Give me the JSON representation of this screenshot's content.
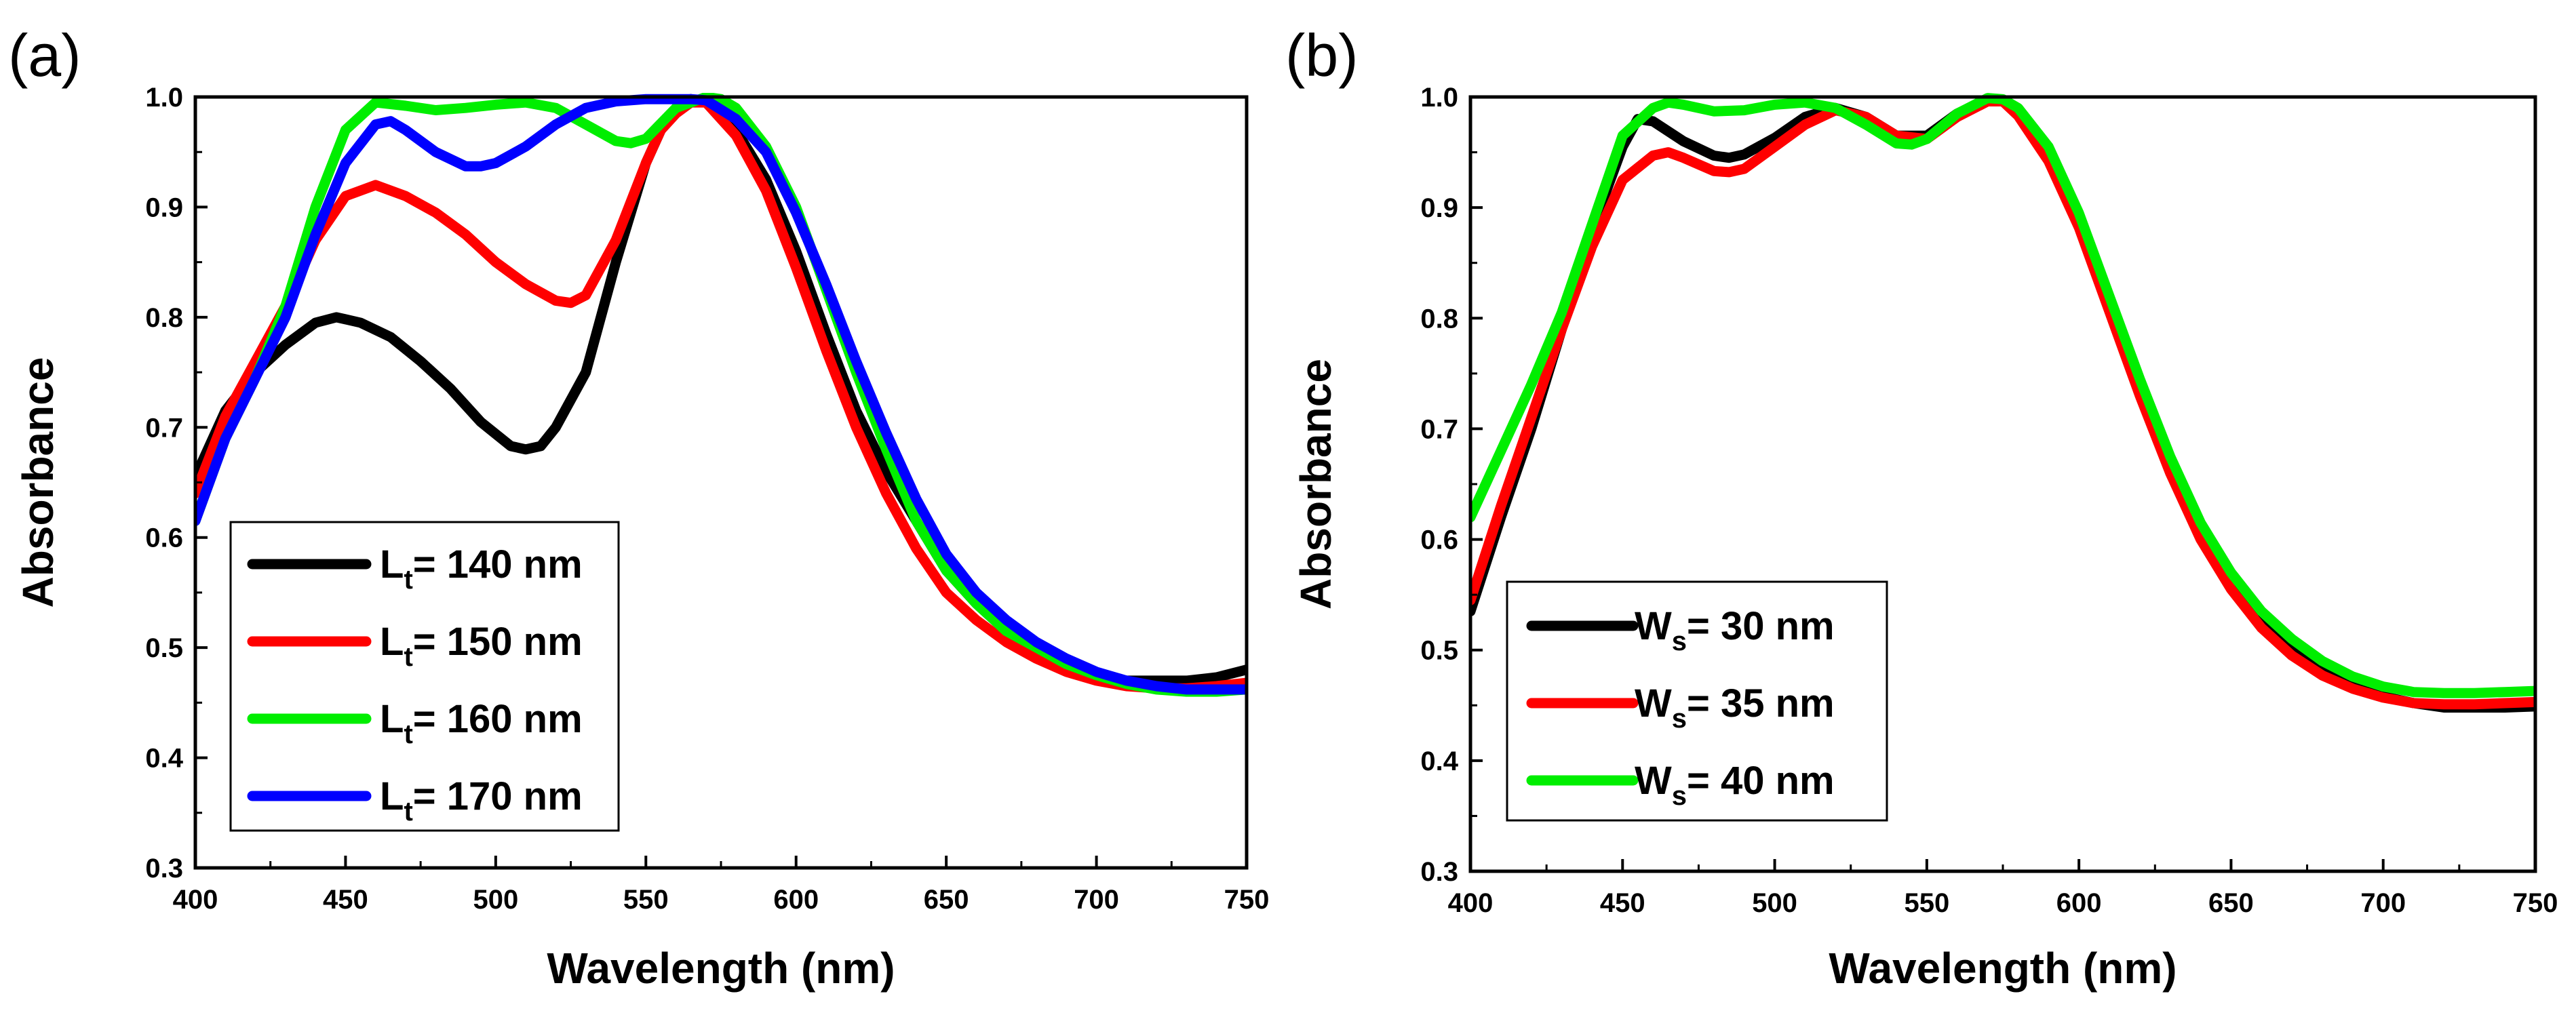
{
  "chart_data": [
    {
      "type": "line",
      "panel_label": "(a)",
      "xlabel": "Wavelength (nm)",
      "ylabel": "Absorbance",
      "xlim": [
        400,
        750
      ],
      "ylim": [
        0.3,
        1.0
      ],
      "xticks": [
        400,
        450,
        500,
        550,
        600,
        650,
        700,
        750
      ],
      "xtick_labels": [
        "400",
        "450",
        "500",
        "550",
        "600",
        "650",
        "700",
        "750"
      ],
      "yticks": [
        0.3,
        0.4,
        0.5,
        0.6,
        0.7,
        0.8,
        0.9,
        1.0
      ],
      "ytick_labels": [
        "0.3",
        "0.4",
        "0.5",
        "0.6",
        "0.7",
        "0.8",
        "0.9",
        "1.0"
      ],
      "legend_position": "lower-left",
      "series": [
        {
          "name": "L",
          "sub": "t",
          "suffix": "= 140 nm",
          "color": "#000000",
          "x": [
            400,
            410,
            420,
            430,
            440,
            447,
            455,
            465,
            475,
            485,
            495,
            505,
            510,
            515,
            520,
            530,
            540,
            550,
            555,
            560,
            565,
            570,
            580,
            590,
            600,
            610,
            620,
            630,
            640,
            650,
            660,
            670,
            680,
            690,
            700,
            710,
            720,
            730,
            740,
            750
          ],
          "y": [
            0.655,
            0.715,
            0.75,
            0.775,
            0.795,
            0.8,
            0.795,
            0.782,
            0.76,
            0.735,
            0.705,
            0.683,
            0.68,
            0.683,
            0.7,
            0.75,
            0.85,
            0.94,
            0.97,
            0.99,
            0.998,
            0.995,
            0.97,
            0.925,
            0.86,
            0.785,
            0.715,
            0.66,
            0.615,
            0.57,
            0.54,
            0.515,
            0.497,
            0.483,
            0.475,
            0.47,
            0.47,
            0.47,
            0.473,
            0.48
          ]
        },
        {
          "name": "L",
          "sub": "t",
          "suffix": "= 150 nm",
          "color": "#ff0000",
          "x": [
            400,
            410,
            420,
            430,
            440,
            450,
            460,
            470,
            480,
            490,
            500,
            510,
            520,
            525,
            530,
            540,
            550,
            555,
            560,
            565,
            570,
            580,
            590,
            600,
            610,
            620,
            630,
            640,
            650,
            660,
            670,
            680,
            690,
            700,
            710,
            720,
            730,
            740,
            750
          ],
          "y": [
            0.64,
            0.71,
            0.76,
            0.81,
            0.87,
            0.91,
            0.92,
            0.91,
            0.895,
            0.875,
            0.85,
            0.83,
            0.815,
            0.813,
            0.82,
            0.87,
            0.94,
            0.97,
            0.985,
            0.995,
            0.995,
            0.965,
            0.915,
            0.845,
            0.77,
            0.7,
            0.64,
            0.59,
            0.55,
            0.525,
            0.505,
            0.49,
            0.478,
            0.47,
            0.465,
            0.463,
            0.463,
            0.465,
            0.468
          ]
        },
        {
          "name": "L",
          "sub": "t",
          "suffix": "= 160 nm",
          "color": "#00ee00",
          "x": [
            400,
            410,
            420,
            430,
            440,
            450,
            460,
            470,
            480,
            490,
            500,
            510,
            520,
            530,
            540,
            545,
            550,
            560,
            570,
            575,
            580,
            590,
            600,
            610,
            620,
            630,
            640,
            650,
            660,
            670,
            680,
            690,
            700,
            710,
            720,
            730,
            740,
            750
          ],
          "y": [
            0.615,
            0.69,
            0.745,
            0.81,
            0.9,
            0.97,
            0.995,
            0.992,
            0.988,
            0.99,
            0.993,
            0.995,
            0.99,
            0.975,
            0.96,
            0.958,
            0.962,
            0.99,
            1.0,
            0.998,
            0.99,
            0.955,
            0.9,
            0.825,
            0.75,
            0.68,
            0.615,
            0.57,
            0.54,
            0.515,
            0.5,
            0.485,
            0.475,
            0.467,
            0.462,
            0.46,
            0.46,
            0.462
          ]
        },
        {
          "name": "L",
          "sub": "t",
          "suffix": "= 170 nm",
          "color": "#0000ff",
          "x": [
            400,
            410,
            420,
            430,
            440,
            450,
            460,
            465,
            470,
            480,
            490,
            495,
            500,
            510,
            520,
            530,
            540,
            550,
            560,
            565,
            570,
            580,
            590,
            600,
            610,
            620,
            630,
            640,
            650,
            660,
            670,
            680,
            690,
            700,
            710,
            720,
            730,
            740,
            750
          ],
          "y": [
            0.615,
            0.69,
            0.745,
            0.8,
            0.875,
            0.94,
            0.975,
            0.978,
            0.97,
            0.95,
            0.937,
            0.937,
            0.94,
            0.955,
            0.975,
            0.99,
            0.996,
            0.998,
            0.998,
            0.998,
            0.997,
            0.98,
            0.95,
            0.895,
            0.83,
            0.76,
            0.695,
            0.635,
            0.585,
            0.55,
            0.525,
            0.505,
            0.49,
            0.478,
            0.47,
            0.465,
            0.462,
            0.462,
            0.462
          ]
        }
      ]
    },
    {
      "type": "line",
      "panel_label": "(b)",
      "xlabel": "Wavelength (nm)",
      "ylabel": "Absorbance",
      "xlim": [
        400,
        750
      ],
      "ylim": [
        0.3,
        1.0
      ],
      "xticks": [
        400,
        450,
        500,
        550,
        600,
        650,
        700,
        750
      ],
      "xtick_labels": [
        "400",
        "450",
        "500",
        "550",
        "600",
        "650",
        "700",
        "750"
      ],
      "yticks": [
        0.3,
        0.4,
        0.5,
        0.6,
        0.7,
        0.8,
        0.9,
        1.0
      ],
      "ytick_labels": [
        "0.3",
        "0.4",
        "0.5",
        "0.6",
        "0.7",
        "0.8",
        "0.9",
        "1.0"
      ],
      "legend_position": "lower-left",
      "series": [
        {
          "name": "W",
          "sub": "s",
          "suffix": "= 30 nm",
          "color": "#000000",
          "x": [
            400,
            410,
            420,
            430,
            440,
            450,
            455,
            460,
            470,
            480,
            485,
            490,
            500,
            510,
            520,
            530,
            540,
            550,
            560,
            570,
            575,
            580,
            590,
            600,
            610,
            620,
            630,
            640,
            650,
            660,
            670,
            680,
            690,
            700,
            710,
            720,
            730,
            740,
            750
          ],
          "y": [
            0.535,
            0.62,
            0.7,
            0.79,
            0.88,
            0.955,
            0.98,
            0.978,
            0.96,
            0.947,
            0.945,
            0.948,
            0.963,
            0.982,
            0.99,
            0.982,
            0.965,
            0.965,
            0.985,
            0.998,
            0.997,
            0.985,
            0.945,
            0.885,
            0.81,
            0.735,
            0.665,
            0.605,
            0.56,
            0.525,
            0.5,
            0.48,
            0.468,
            0.458,
            0.452,
            0.448,
            0.448,
            0.448,
            0.449
          ]
        },
        {
          "name": "W",
          "sub": "s",
          "suffix": "= 35 nm",
          "color": "#ff0000",
          "x": [
            400,
            410,
            420,
            430,
            440,
            450,
            460,
            465,
            470,
            480,
            485,
            490,
            500,
            510,
            520,
            530,
            540,
            550,
            560,
            570,
            575,
            580,
            590,
            600,
            610,
            620,
            630,
            640,
            650,
            660,
            670,
            680,
            690,
            700,
            710,
            720,
            730,
            740,
            750
          ],
          "y": [
            0.545,
            0.63,
            0.71,
            0.79,
            0.865,
            0.925,
            0.947,
            0.95,
            0.945,
            0.933,
            0.932,
            0.935,
            0.955,
            0.975,
            0.988,
            0.982,
            0.965,
            0.962,
            0.982,
            0.996,
            0.996,
            0.983,
            0.942,
            0.882,
            0.806,
            0.73,
            0.66,
            0.6,
            0.555,
            0.52,
            0.495,
            0.477,
            0.465,
            0.457,
            0.452,
            0.451,
            0.451,
            0.452,
            0.453
          ]
        },
        {
          "name": "W",
          "sub": "s",
          "suffix": "= 40 nm",
          "color": "#00ee00",
          "x": [
            400,
            410,
            420,
            430,
            440,
            450,
            460,
            465,
            470,
            480,
            490,
            500,
            510,
            520,
            530,
            540,
            545,
            550,
            560,
            570,
            575,
            580,
            590,
            600,
            610,
            620,
            630,
            640,
            650,
            660,
            670,
            680,
            690,
            700,
            710,
            720,
            730,
            740,
            750
          ],
          "y": [
            0.62,
            0.68,
            0.74,
            0.805,
            0.885,
            0.965,
            0.99,
            0.995,
            0.993,
            0.987,
            0.988,
            0.993,
            0.995,
            0.99,
            0.975,
            0.958,
            0.957,
            0.962,
            0.985,
            0.999,
            0.998,
            0.99,
            0.955,
            0.895,
            0.82,
            0.745,
            0.675,
            0.615,
            0.57,
            0.535,
            0.51,
            0.49,
            0.476,
            0.467,
            0.462,
            0.461,
            0.461,
            0.462,
            0.463
          ]
        }
      ]
    }
  ]
}
